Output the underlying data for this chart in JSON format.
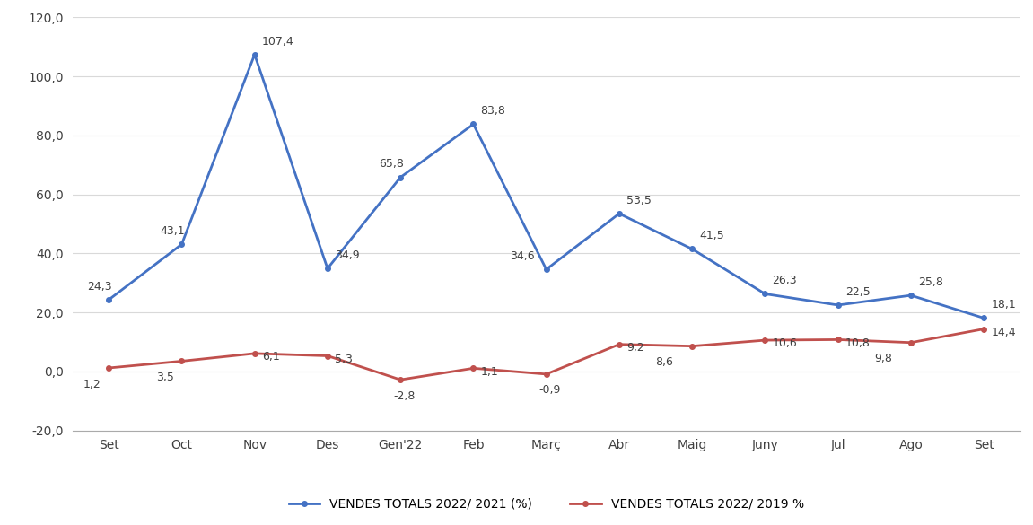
{
  "categories": [
    "Set",
    "Oct",
    "Nov",
    "Des",
    "Gen'22",
    "Feb",
    "Març",
    "Abr",
    "Maig",
    "Juny",
    "Jul",
    "Ago",
    "Set"
  ],
  "series1_values": [
    24.3,
    43.1,
    107.4,
    34.9,
    65.8,
    83.8,
    34.6,
    53.5,
    41.5,
    26.3,
    22.5,
    25.8,
    18.1
  ],
  "series2_values": [
    1.2,
    3.5,
    6.1,
    5.3,
    -2.8,
    1.1,
    -0.9,
    9.2,
    8.6,
    10.6,
    10.8,
    9.8,
    14.4
  ],
  "series1_label": "VENDES TOTALS 2022/ 2021 (%)",
  "series2_label": "VENDES TOTALS 2022/ 2019 %",
  "series1_color": "#4472C4",
  "series2_color": "#C0504D",
  "ylim_min": -20,
  "ylim_max": 120,
  "yticks": [
    -20,
    0,
    20,
    40,
    60,
    80,
    100,
    120
  ],
  "background_color": "#ffffff",
  "grid_color": "#d9d9d9",
  "annotation_fontsize": 9,
  "axis_label_fontsize": 10,
  "legend_fontsize": 10,
  "line_width": 2.0,
  "marker": "o",
  "marker_size": 4,
  "series1_annot_offsets": [
    [
      -0.3,
      2.5
    ],
    [
      -0.3,
      2.5
    ],
    [
      0.1,
      2.5
    ],
    [
      0.1,
      2.5
    ],
    [
      -0.3,
      2.5
    ],
    [
      0.1,
      2.5
    ],
    [
      -0.5,
      2.5
    ],
    [
      0.1,
      2.5
    ],
    [
      0.1,
      2.5
    ],
    [
      0.1,
      2.5
    ],
    [
      0.1,
      2.5
    ],
    [
      0.1,
      2.5
    ],
    [
      0.1,
      2.5
    ]
  ],
  "series2_annot_offsets": [
    [
      -0.35,
      -3.5
    ],
    [
      -0.35,
      -3.5
    ],
    [
      0.1,
      0.8
    ],
    [
      0.1,
      0.8
    ],
    [
      -0.1,
      -3.5
    ],
    [
      0.1,
      0.8
    ],
    [
      -0.1,
      -3.5
    ],
    [
      0.1,
      0.8
    ],
    [
      -0.5,
      -3.5
    ],
    [
      0.1,
      0.8
    ],
    [
      0.1,
      0.8
    ],
    [
      -0.5,
      -3.5
    ],
    [
      0.1,
      0.8
    ]
  ]
}
